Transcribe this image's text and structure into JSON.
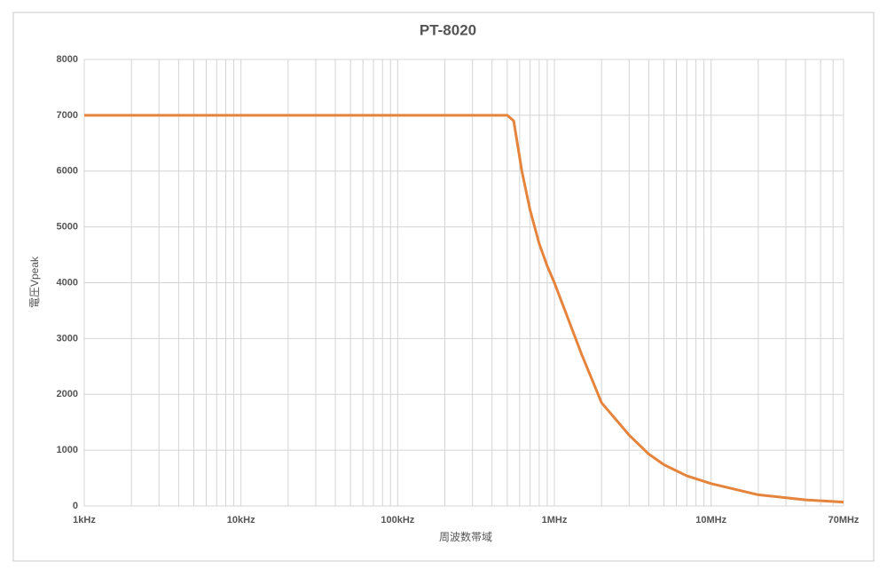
{
  "chart_data": {
    "type": "line",
    "title": "PT-8020",
    "x_label": "周波数帯域",
    "y_label": "電圧Vpeak",
    "x_scale": "log",
    "grid": true,
    "minor_grid": true,
    "xlim": [
      1000,
      70000000
    ],
    "xticks": [
      {
        "value": 1000,
        "label": "1kHz"
      },
      {
        "value": 10000,
        "label": "10kHz"
      },
      {
        "value": 100000,
        "label": "100kHz"
      },
      {
        "value": 1000000,
        "label": "1MHz"
      },
      {
        "value": 10000000,
        "label": "10MHz"
      },
      {
        "value": 70000000,
        "label": "70MHz"
      }
    ],
    "ylim": [
      0,
      8000
    ],
    "yticks": [
      0,
      1000,
      2000,
      3000,
      4000,
      5000,
      6000,
      7000,
      8000
    ],
    "series": [
      {
        "name": "PT-8020",
        "color": "#e5843d",
        "x": [
          1000,
          500000,
          550000,
          620000,
          700000,
          800000,
          900000,
          1000000,
          1500000,
          2000000,
          3000000,
          4000000,
          5000000,
          7000000,
          10000000,
          20000000,
          40000000,
          70000000
        ],
        "values": [
          7000,
          7000,
          6900,
          6000,
          5300,
          4700,
          4300,
          4000,
          2700,
          1850,
          1270,
          930,
          740,
          540,
          400,
          200,
          110,
          70
        ]
      }
    ]
  }
}
